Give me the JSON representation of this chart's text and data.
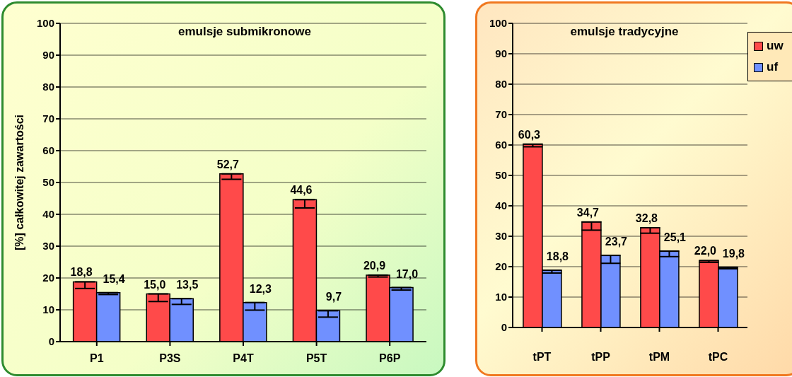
{
  "chart_data": [
    {
      "type": "bar",
      "title": "emulsje submikronowe",
      "ylabel": "[%] całkowitej zawartości",
      "categories": [
        "P1",
        "P3S",
        "P4T",
        "P5T",
        "P6P"
      ],
      "ylim": [
        0,
        100
      ],
      "yticks": [
        0,
        10,
        20,
        30,
        40,
        50,
        60,
        70,
        80,
        90,
        100
      ],
      "grid": "y",
      "legend": false,
      "series": [
        {
          "color": "#ff4a4a",
          "values": [
            18.8,
            15.0,
            52.7,
            44.6,
            20.9
          ],
          "value_labels": [
            "18,8",
            "15,0",
            "52,7",
            "44,6",
            "20,9"
          ],
          "errors": [
            [
              16.7,
              18.8
            ],
            [
              12.6,
              15.0
            ],
            [
              51.0,
              52.7
            ],
            [
              42.0,
              44.6
            ],
            [
              20.3,
              20.9
            ]
          ]
        },
        {
          "color": "#7090ff",
          "values": [
            15.4,
            13.5,
            12.3,
            9.7,
            17.0
          ],
          "value_labels": [
            "15,4",
            "13,5",
            "12,3",
            "9,7",
            "17,0"
          ],
          "errors": [
            [
              14.8,
              15.4
            ],
            [
              11.7,
              13.5
            ],
            [
              9.9,
              12.3
            ],
            [
              7.7,
              9.7
            ],
            [
              16.2,
              17.0
            ]
          ]
        }
      ]
    },
    {
      "type": "bar",
      "title": "emulsje tradycyjne",
      "categories": [
        "tPT",
        "tPP",
        "tPM",
        "tPC"
      ],
      "ylim": [
        0,
        100
      ],
      "yticks": [
        0,
        10,
        20,
        30,
        40,
        50,
        60,
        70,
        80,
        90,
        100
      ],
      "grid": "y",
      "legend": "top right",
      "series": [
        {
          "name": "uw",
          "color": "#ff4a4a",
          "values": [
            60.3,
            34.7,
            32.8,
            22.0
          ],
          "value_labels": [
            "60,3",
            "34,7",
            "32,8",
            "22,0"
          ],
          "errors": [
            [
              59.4,
              60.3
            ],
            [
              32.0,
              34.7
            ],
            [
              31.0,
              32.8
            ],
            [
              21.4,
              22.0
            ]
          ]
        },
        {
          "name": "uf",
          "color": "#7090ff",
          "values": [
            18.8,
            23.7,
            25.1,
            19.8
          ],
          "value_labels": [
            "18,8",
            "23,7",
            "25,1",
            "19,8"
          ],
          "errors": [
            [
              17.9,
              18.8
            ],
            [
              21.1,
              23.7
            ],
            [
              23.3,
              25.1
            ],
            [
              19.3,
              19.8
            ]
          ]
        }
      ]
    }
  ]
}
